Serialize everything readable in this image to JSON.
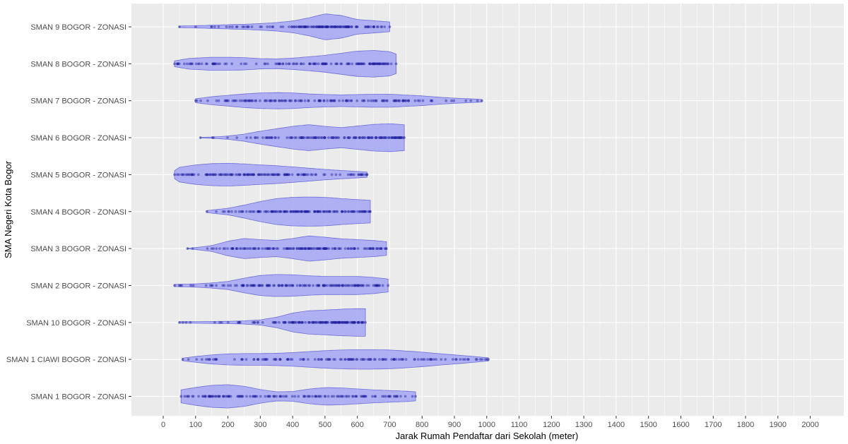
{
  "chart_data": {
    "type": "violin",
    "orientation": "horizontal",
    "xlabel": "Jarak Rumah Pendaftar dari Sekolah (meter)",
    "ylabel": "SMA Negeri Kota Bogor",
    "xlim": [
      -95,
      2095
    ],
    "x_ticks": [
      0,
      100,
      200,
      300,
      400,
      500,
      600,
      700,
      800,
      900,
      1000,
      1100,
      1200,
      1300,
      1400,
      1500,
      1600,
      1700,
      1800,
      1900,
      2000
    ],
    "grid": true,
    "legend": "none",
    "colors": {
      "panel": "#EBEBEB",
      "grid": "#FFFFFF",
      "violin_fill": "#A4A4F4",
      "violin_stroke": "#6E6ED8",
      "point": "#1E1EA0"
    },
    "categories": [
      "SMAN 9 BOGOR - ZONASI",
      "SMAN 8 BOGOR - ZONASI",
      "SMAN 7 BOGOR - ZONASI",
      "SMAN 6 BOGOR - ZONASI",
      "SMAN 5 BOGOR - ZONASI",
      "SMAN 4 BOGOR - ZONASI",
      "SMAN 3 BOGOR - ZONASI",
      "SMAN 2 BOGOR - ZONASI",
      "SMAN 10 BOGOR - ZONASI",
      "SMAN 1 CIAWI BOGOR - ZONASI",
      "SMAN 1 BOGOR - ZONASI"
    ],
    "series": [
      {
        "category": "SMAN 9 BOGOR - ZONASI",
        "min": 50,
        "max": 700,
        "density": [
          [
            50,
            0.05
          ],
          [
            100,
            0.07
          ],
          [
            150,
            0.1
          ],
          [
            200,
            0.13
          ],
          [
            250,
            0.16
          ],
          [
            300,
            0.2
          ],
          [
            350,
            0.26
          ],
          [
            400,
            0.36
          ],
          [
            450,
            0.55
          ],
          [
            500,
            0.8
          ],
          [
            550,
            0.7
          ],
          [
            600,
            0.45
          ],
          [
            650,
            0.38
          ],
          [
            700,
            0.3
          ]
        ]
      },
      {
        "category": "SMAN 8 BOGOR - ZONASI",
        "min": 35,
        "max": 720,
        "density": [
          [
            35,
            0.18
          ],
          [
            80,
            0.33
          ],
          [
            150,
            0.4
          ],
          [
            200,
            0.4
          ],
          [
            250,
            0.38
          ],
          [
            300,
            0.32
          ],
          [
            350,
            0.3
          ],
          [
            400,
            0.35
          ],
          [
            450,
            0.43
          ],
          [
            500,
            0.52
          ],
          [
            550,
            0.65
          ],
          [
            600,
            0.78
          ],
          [
            650,
            0.82
          ],
          [
            700,
            0.75
          ],
          [
            720,
            0.6
          ]
        ]
      },
      {
        "category": "SMAN 7 BOGOR - ZONASI",
        "min": 100,
        "max": 985,
        "density": [
          [
            100,
            0.12
          ],
          [
            150,
            0.25
          ],
          [
            200,
            0.33
          ],
          [
            250,
            0.42
          ],
          [
            300,
            0.48
          ],
          [
            350,
            0.5
          ],
          [
            400,
            0.48
          ],
          [
            450,
            0.42
          ],
          [
            500,
            0.38
          ],
          [
            550,
            0.36
          ],
          [
            600,
            0.38
          ],
          [
            650,
            0.4
          ],
          [
            700,
            0.4
          ],
          [
            750,
            0.35
          ],
          [
            800,
            0.3
          ],
          [
            850,
            0.22
          ],
          [
            900,
            0.16
          ],
          [
            950,
            0.12
          ],
          [
            985,
            0.08
          ]
        ]
      },
      {
        "category": "SMAN 6 BOGOR - ZONASI",
        "min": 115,
        "max": 745,
        "density": [
          [
            115,
            0.02
          ],
          [
            150,
            0.04
          ],
          [
            200,
            0.1
          ],
          [
            250,
            0.22
          ],
          [
            300,
            0.4
          ],
          [
            350,
            0.55
          ],
          [
            400,
            0.7
          ],
          [
            450,
            0.8
          ],
          [
            500,
            0.7
          ],
          [
            550,
            0.62
          ],
          [
            600,
            0.72
          ],
          [
            650,
            0.82
          ],
          [
            700,
            0.86
          ],
          [
            745,
            0.8
          ]
        ]
      },
      {
        "category": "SMAN 5 BOGOR - ZONASI",
        "min": 35,
        "max": 630,
        "density": [
          [
            35,
            0.25
          ],
          [
            50,
            0.45
          ],
          [
            100,
            0.6
          ],
          [
            150,
            0.68
          ],
          [
            200,
            0.7
          ],
          [
            250,
            0.66
          ],
          [
            300,
            0.6
          ],
          [
            350,
            0.55
          ],
          [
            400,
            0.48
          ],
          [
            450,
            0.4
          ],
          [
            500,
            0.32
          ],
          [
            550,
            0.26
          ],
          [
            600,
            0.2
          ],
          [
            630,
            0.16
          ]
        ]
      },
      {
        "category": "SMAN 4 BOGOR - ZONASI",
        "min": 135,
        "max": 640,
        "density": [
          [
            135,
            0.06
          ],
          [
            150,
            0.1
          ],
          [
            200,
            0.2
          ],
          [
            250,
            0.4
          ],
          [
            300,
            0.62
          ],
          [
            350,
            0.8
          ],
          [
            400,
            0.88
          ],
          [
            450,
            0.9
          ],
          [
            500,
            0.88
          ],
          [
            550,
            0.8
          ],
          [
            600,
            0.74
          ],
          [
            640,
            0.7
          ]
        ]
      },
      {
        "category": "SMAN 3 BOGOR - ZONASI",
        "min": 75,
        "max": 690,
        "density": [
          [
            75,
            0.02
          ],
          [
            100,
            0.06
          ],
          [
            150,
            0.18
          ],
          [
            200,
            0.45
          ],
          [
            250,
            0.62
          ],
          [
            300,
            0.55
          ],
          [
            350,
            0.5
          ],
          [
            400,
            0.62
          ],
          [
            450,
            0.78
          ],
          [
            500,
            0.7
          ],
          [
            550,
            0.6
          ],
          [
            600,
            0.55
          ],
          [
            650,
            0.5
          ],
          [
            690,
            0.42
          ]
        ]
      },
      {
        "category": "SMAN 2 BOGOR - ZONASI",
        "min": 35,
        "max": 695,
        "density": [
          [
            35,
            0.07
          ],
          [
            100,
            0.1
          ],
          [
            150,
            0.16
          ],
          [
            200,
            0.25
          ],
          [
            250,
            0.45
          ],
          [
            300,
            0.62
          ],
          [
            350,
            0.68
          ],
          [
            400,
            0.66
          ],
          [
            450,
            0.6
          ],
          [
            500,
            0.56
          ],
          [
            550,
            0.56
          ],
          [
            600,
            0.56
          ],
          [
            650,
            0.5
          ],
          [
            695,
            0.4
          ]
        ]
      },
      {
        "category": "SMAN 10 BOGOR - ZONASI",
        "min": 50,
        "max": 625,
        "density": [
          [
            50,
            0.05
          ],
          [
            100,
            0.05
          ],
          [
            150,
            0.06
          ],
          [
            200,
            0.07
          ],
          [
            250,
            0.1
          ],
          [
            300,
            0.16
          ],
          [
            350,
            0.32
          ],
          [
            400,
            0.58
          ],
          [
            450,
            0.72
          ],
          [
            500,
            0.76
          ],
          [
            550,
            0.82
          ],
          [
            600,
            0.85
          ],
          [
            625,
            0.85
          ]
        ]
      },
      {
        "category": "SMAN 1 CIAWI BOGOR - ZONASI",
        "min": 60,
        "max": 1005,
        "density": [
          [
            60,
            0.08
          ],
          [
            100,
            0.18
          ],
          [
            150,
            0.28
          ],
          [
            200,
            0.34
          ],
          [
            250,
            0.36
          ],
          [
            300,
            0.36
          ],
          [
            350,
            0.38
          ],
          [
            400,
            0.42
          ],
          [
            450,
            0.48
          ],
          [
            500,
            0.54
          ],
          [
            550,
            0.58
          ],
          [
            600,
            0.6
          ],
          [
            650,
            0.6
          ],
          [
            700,
            0.58
          ],
          [
            750,
            0.52
          ],
          [
            800,
            0.45
          ],
          [
            850,
            0.36
          ],
          [
            900,
            0.28
          ],
          [
            950,
            0.2
          ],
          [
            1005,
            0.1
          ]
        ]
      },
      {
        "category": "SMAN 1 BOGOR - ZONASI",
        "min": 55,
        "max": 780,
        "density": [
          [
            55,
            0.4
          ],
          [
            100,
            0.55
          ],
          [
            150,
            0.68
          ],
          [
            200,
            0.72
          ],
          [
            250,
            0.62
          ],
          [
            300,
            0.42
          ],
          [
            350,
            0.28
          ],
          [
            400,
            0.3
          ],
          [
            450,
            0.45
          ],
          [
            500,
            0.54
          ],
          [
            550,
            0.52
          ],
          [
            600,
            0.46
          ],
          [
            650,
            0.4
          ],
          [
            700,
            0.36
          ],
          [
            750,
            0.32
          ],
          [
            780,
            0.28
          ]
        ]
      }
    ]
  }
}
